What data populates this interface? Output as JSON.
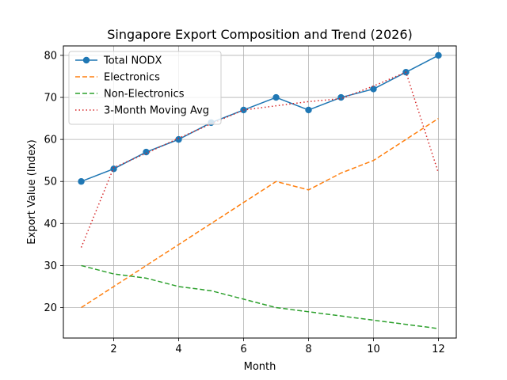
{
  "chart_data": {
    "type": "line",
    "title": "Singapore Export Composition and Trend (2026)",
    "xlabel": "Month",
    "ylabel": "Export Value (Index)",
    "xlim": [
      0.45,
      12.55
    ],
    "ylim": [
      12.75,
      82.25
    ],
    "xticks": [
      2,
      4,
      6,
      8,
      10,
      12
    ],
    "yticks": [
      20,
      30,
      40,
      50,
      60,
      70,
      80
    ],
    "grid": true,
    "legend_position": "top-left",
    "x": [
      1,
      2,
      3,
      4,
      5,
      6,
      7,
      8,
      9,
      10,
      11,
      12
    ],
    "series": [
      {
        "name": "Total NODX",
        "color": "#1f77b4",
        "style": "solid",
        "marker": "circle",
        "values": [
          50,
          53,
          57,
          60,
          64,
          67,
          70,
          67,
          70,
          72,
          76,
          80
        ]
      },
      {
        "name": "Electronics",
        "color": "#ff7f0e",
        "style": "dashed",
        "marker": "none",
        "values": [
          20,
          25,
          30,
          35,
          40,
          45,
          50,
          48,
          52,
          55,
          60,
          65
        ]
      },
      {
        "name": "Non-Electronics",
        "color": "#2ca02c",
        "style": "dashed",
        "marker": "none",
        "values": [
          30,
          28,
          27,
          25,
          24,
          22,
          20,
          19,
          18,
          17,
          16,
          15
        ]
      },
      {
        "name": "3-Month Moving Avg",
        "color": "#d62728",
        "style": "dotted",
        "marker": "none",
        "values": [
          34.3,
          53.3,
          56.7,
          60.3,
          63.7,
          67.0,
          68.0,
          69.0,
          69.7,
          72.7,
          76.0,
          52.0
        ]
      }
    ]
  }
}
